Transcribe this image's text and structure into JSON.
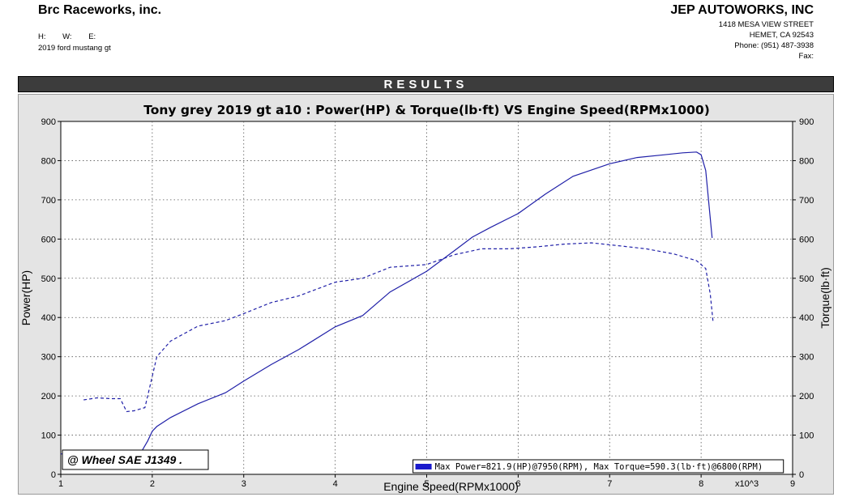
{
  "header": {
    "left_company": "Brc Raceworks, inc.",
    "hwe": [
      "H:",
      "W:",
      "E:"
    ],
    "vehicle": "2019 ford mustang gt",
    "right_company": "JEP AUTOWORKS, INC",
    "address_lines": [
      "1418 MESA VIEW STREET",
      "HEMET, CA  92543",
      "Phone: (951) 487-3938",
      "Fax:"
    ]
  },
  "results_label": "RESULTS",
  "colors": {
    "power": "#2020a8",
    "torque": "#2020a8",
    "legend_swatch": "#1a1acc",
    "results_bar": "#3c3c3c",
    "panel": "#e4e4e4"
  },
  "chart_data": {
    "type": "line",
    "title": "Tony grey 2019 gt a10 : Power(HP) & Torque(lb·ft) VS Engine Speed(RPMx1000)",
    "xlabel": "Engine Speed(RPMx1000)",
    "x_multiplier": "x10^3",
    "ylabel_left": "Power(HP)",
    "ylabel_right": "Torque(lb·ft)",
    "xlim": [
      1,
      9
    ],
    "ylim": [
      0,
      900
    ],
    "x_ticks": [
      "1",
      "2",
      "3",
      "4",
      "5",
      "6",
      "7",
      "8",
      "9"
    ],
    "y_ticks": [
      "0",
      "100",
      "200",
      "300",
      "400",
      "500",
      "600",
      "700",
      "800",
      "900"
    ],
    "grid": true,
    "annotation": "@ Wheel SAE J1349  .",
    "legend_text": "Max Power=821.9(HP)@7950(RPM), Max Torque=590.3(lb·ft)@6800(RPM)",
    "series": [
      {
        "style": "solid",
        "x": [
          1.0,
          1.5,
          1.65,
          1.7,
          1.88,
          1.95,
          2.0,
          2.05,
          2.2,
          2.5,
          2.8,
          3.0,
          3.3,
          3.6,
          4.0,
          4.3,
          4.6,
          5.0,
          5.3,
          5.5,
          5.7,
          6.0,
          6.3,
          6.6,
          7.0,
          7.3,
          7.6,
          7.8,
          7.95,
          8.0,
          8.05,
          8.12
        ],
        "y": [
          52,
          54,
          56,
          54,
          57,
          85,
          110,
          122,
          145,
          180,
          208,
          238,
          280,
          318,
          376,
          405,
          465,
          518,
          570,
          605,
          630,
          665,
          715,
          760,
          792,
          808,
          815,
          820,
          821.9,
          815,
          775,
          603
        ]
      },
      {
        "style": "dashed",
        "x": [
          1.25,
          1.4,
          1.55,
          1.65,
          1.72,
          1.8,
          1.92,
          1.97,
          2.05,
          2.2,
          2.5,
          2.8,
          3.0,
          3.3,
          3.6,
          4.0,
          4.3,
          4.6,
          5.0,
          5.3,
          5.6,
          5.9,
          6.2,
          6.5,
          6.8,
          7.1,
          7.4,
          7.7,
          7.95,
          8.05,
          8.1,
          8.13
        ],
        "y": [
          190,
          195,
          193,
          193,
          160,
          162,
          170,
          220,
          300,
          340,
          378,
          392,
          410,
          438,
          455,
          490,
          500,
          528,
          535,
          560,
          575,
          575,
          580,
          587,
          590.3,
          583,
          575,
          562,
          545,
          525,
          460,
          390
        ]
      }
    ]
  }
}
